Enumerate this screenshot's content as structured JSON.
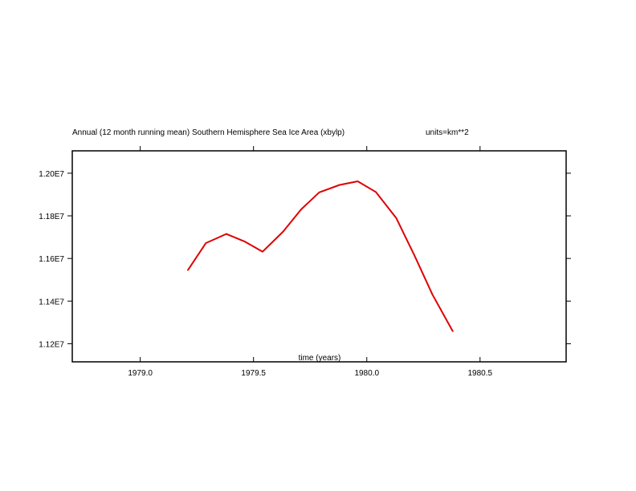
{
  "chart_data": {
    "type": "line",
    "title": "Annual (12 month running mean) Southern Hemisphere Sea Ice Area (xbylp)",
    "units": "units=km**2",
    "xlabel": "time (years)",
    "ylabel": "",
    "xlim": [
      1978.7,
      1980.88
    ],
    "ylim": [
      11115000.0,
      12105000.0
    ],
    "x_ticks": [
      1979.0,
      1979.5,
      1980.0,
      1980.5
    ],
    "x_tick_labels": [
      "1979.0",
      "1979.5",
      "1980.0",
      "1980.5"
    ],
    "y_ticks": [
      11200000.0,
      11400000.0,
      11600000.0,
      11800000.0,
      12000000.0
    ],
    "y_tick_labels": [
      "1.12E7",
      "1.14E7",
      "1.16E7",
      "1.18E7",
      "1.20E7"
    ],
    "grid": false,
    "line_color": "#e00000",
    "series": [
      {
        "x": [
          1979.21,
          1979.29,
          1979.38,
          1979.46,
          1979.54,
          1979.63,
          1979.71,
          1979.79,
          1979.88,
          1979.96,
          1980.04,
          1980.13,
          1980.21,
          1980.29,
          1980.38
        ],
        "values": [
          11545000.0,
          11672000.0,
          11715000.0,
          11680000.0,
          11632000.0,
          11725000.0,
          11830000.0,
          11910000.0,
          11945000.0,
          11962000.0,
          11912000.0,
          11790000.0,
          11615000.0,
          11430000.0,
          11258000.0
        ]
      }
    ]
  }
}
